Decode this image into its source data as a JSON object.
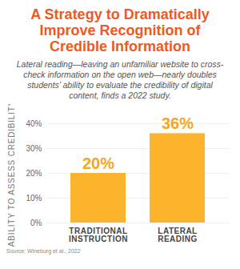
{
  "chart_data": {
    "type": "bar",
    "title": "A Strategy to Dramatically Improve Recognition of Credible Information",
    "subtitle": "Lateral reading—leaving an unfamiliar website to cross-check information on the open web—nearly doubles students’ ability to evaluate the credibility of digital content, finds a 2022 study.",
    "source": "Source: Wineburg et al., 2022",
    "y_label": "ABILITY TO ASSESS CREDIBILITY",
    "categories": [
      "TRADITIONAL INSTRUCTION",
      "LATERAL READING"
    ],
    "values": [
      20,
      36
    ],
    "value_labels": [
      "20%",
      "36%"
    ],
    "color": "#fbb42c",
    "ylim": [
      0,
      40
    ],
    "yticks": [
      {
        "value": 0,
        "label": "0%"
      },
      {
        "value": 10,
        "label": "10%"
      },
      {
        "value": 20,
        "label": "20%"
      },
      {
        "value": 30,
        "label": "30%"
      },
      {
        "value": 40,
        "label": "40%"
      }
    ],
    "grid": true,
    "data_labels": true
  }
}
